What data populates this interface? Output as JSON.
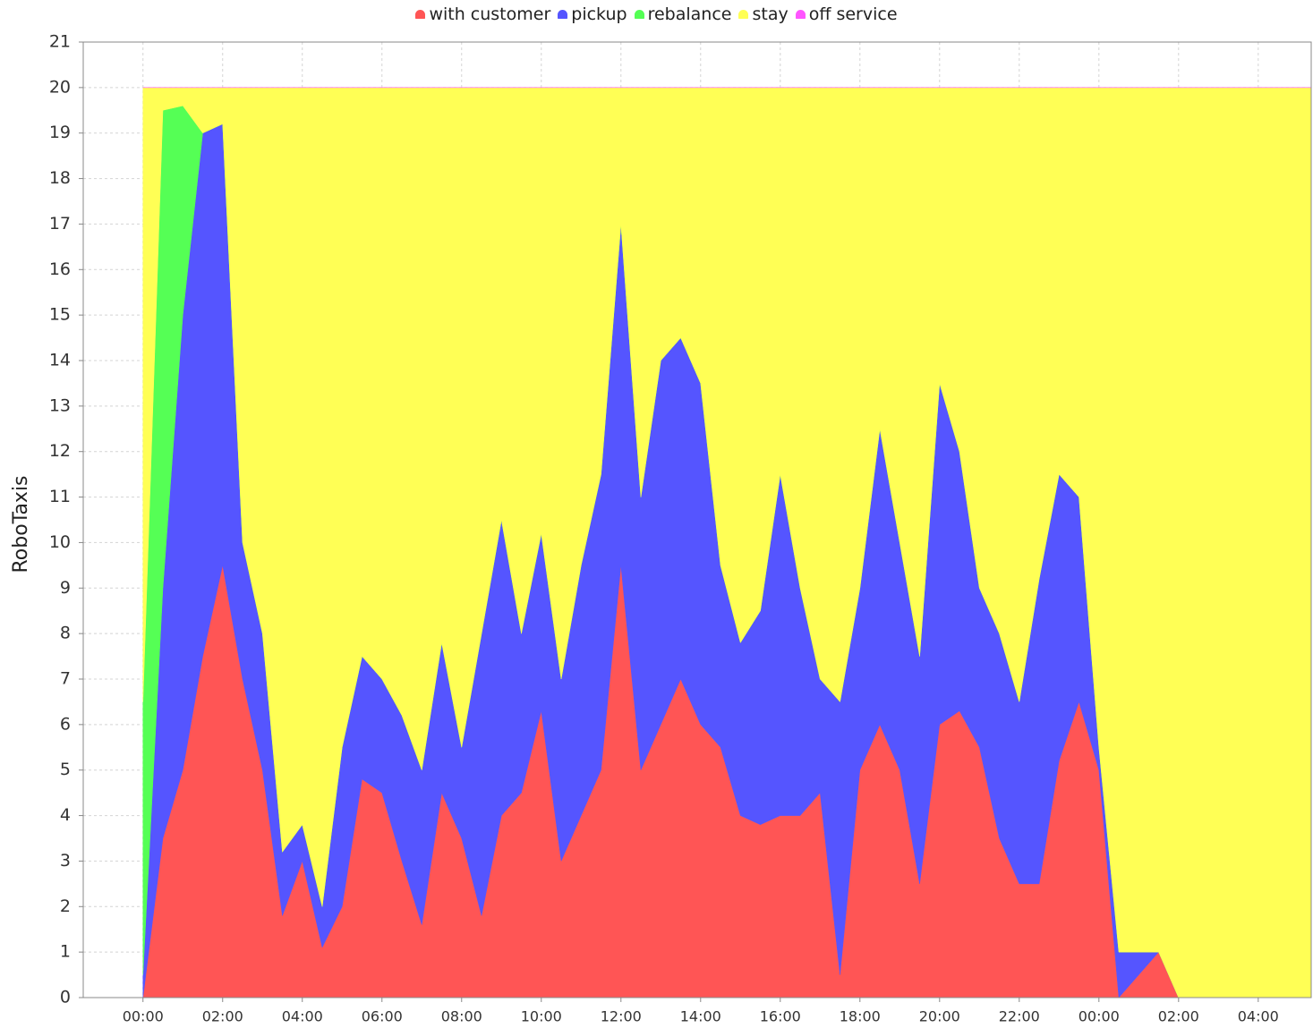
{
  "chart_data": {
    "type": "stacked-area",
    "y_label": "RoboTaxis",
    "x": [
      0,
      0.5,
      1,
      1.5,
      2,
      2.5,
      3,
      3.5,
      4,
      4.5,
      5,
      5.5,
      6,
      6.5,
      7,
      7.5,
      8,
      8.5,
      9,
      9.5,
      10,
      10.5,
      11,
      11.5,
      12,
      12.5,
      13,
      13.5,
      14,
      14.5,
      15,
      15.5,
      16,
      16.5,
      17,
      17.5,
      18,
      18.5,
      19,
      19.5,
      20,
      20.5,
      21,
      21.5,
      22,
      22.5,
      23,
      23.5,
      24,
      24.5,
      25,
      25.5,
      26,
      29.33
    ],
    "series": [
      {
        "name": "with customer",
        "color": "#ff5555",
        "values": [
          0,
          3.5,
          5,
          7.5,
          9.5,
          7,
          5,
          1.8,
          3,
          1.1,
          2,
          4.8,
          4.5,
          3,
          1.6,
          4.5,
          3.5,
          1.8,
          4,
          4.5,
          6.3,
          3,
          4,
          5,
          9.5,
          5,
          6,
          7,
          6,
          5.5,
          4,
          3.8,
          4,
          4,
          4.5,
          0.5,
          5,
          6,
          5,
          2.5,
          6,
          6.3,
          5.5,
          3.5,
          2.5,
          2.5,
          5.2,
          6.5,
          5,
          0,
          0.5,
          1,
          0,
          0
        ]
      },
      {
        "name": "pickup",
        "color": "#5555ff",
        "values": [
          0.5,
          5.5,
          10,
          11.5,
          9.7,
          3,
          3,
          1.4,
          0.8,
          0.9,
          3.5,
          2.7,
          2.5,
          3.2,
          3.4,
          3.3,
          2,
          6.2,
          6.5,
          3.5,
          3.9,
          4,
          5.5,
          6.5,
          7.5,
          6,
          8,
          7.5,
          7.5,
          4,
          3.8,
          4.7,
          7.5,
          5,
          2.5,
          6,
          4,
          6.5,
          5,
          5,
          7.5,
          5.7,
          3.5,
          4.5,
          4,
          6.7,
          6.3,
          4.5,
          0.5,
          1,
          0.5,
          0,
          0,
          0
        ]
      },
      {
        "name": "rebalance",
        "color": "#55ff55",
        "values": [
          6,
          10.5,
          4.6,
          0,
          0,
          0,
          0,
          0,
          0,
          0,
          0,
          0,
          0,
          0,
          0,
          0,
          0,
          0,
          0,
          0,
          0,
          0,
          0,
          0,
          0,
          0,
          0,
          0,
          0,
          0,
          0,
          0,
          0,
          0,
          0,
          0,
          0,
          0,
          0,
          0,
          0,
          0,
          0,
          0,
          0,
          0,
          0,
          0,
          0,
          0,
          0,
          0,
          0,
          0
        ]
      },
      {
        "name": "stay",
        "color": "#ffff55",
        "values": [
          13.5,
          0.5,
          0.4,
          1,
          0.8,
          10,
          12,
          16.8,
          16.2,
          18,
          14.5,
          12.5,
          13,
          13.8,
          15,
          12.2,
          14.5,
          12,
          9.5,
          12,
          9.8,
          13,
          10.5,
          8.5,
          3,
          9,
          6,
          5.5,
          6.5,
          10.5,
          12.2,
          11.5,
          8.5,
          11,
          13,
          13.5,
          11,
          7.5,
          10,
          12.5,
          6.5,
          8,
          11,
          12,
          13.5,
          10.8,
          8.5,
          9,
          14.5,
          19,
          19,
          19,
          20,
          20
        ]
      },
      {
        "name": "off service",
        "color": "#ff55ff",
        "values": [
          0,
          0,
          0,
          0,
          0,
          0,
          0,
          0,
          0,
          0,
          0,
          0,
          0,
          0,
          0,
          0,
          0,
          0,
          0,
          0,
          0,
          0,
          0,
          0,
          0,
          0,
          0,
          0,
          0,
          0,
          0,
          0,
          0,
          0,
          0,
          0,
          0,
          0,
          0,
          0,
          0,
          0,
          0,
          0,
          0,
          0,
          0,
          0,
          0,
          0,
          0,
          0,
          0,
          0
        ]
      }
    ],
    "xlim": [
      -1.5,
      29.33
    ],
    "xticks": [
      {
        "value": 0,
        "label": "00:00"
      },
      {
        "value": 2,
        "label": "02:00"
      },
      {
        "value": 4,
        "label": "04:00"
      },
      {
        "value": 6,
        "label": "06:00"
      },
      {
        "value": 8,
        "label": "08:00"
      },
      {
        "value": 10,
        "label": "10:00"
      },
      {
        "value": 12,
        "label": "12:00"
      },
      {
        "value": 14,
        "label": "14:00"
      },
      {
        "value": 16,
        "label": "16:00"
      },
      {
        "value": 18,
        "label": "18:00"
      },
      {
        "value": 20,
        "label": "20:00"
      },
      {
        "value": 22,
        "label": "22:00"
      },
      {
        "value": 24,
        "label": "00:00"
      },
      {
        "value": 26,
        "label": "02:00"
      },
      {
        "value": 28,
        "label": "04:00"
      }
    ],
    "ylim": [
      0,
      21
    ],
    "yticks": [
      0,
      1,
      2,
      3,
      4,
      5,
      6,
      7,
      8,
      9,
      10,
      11,
      12,
      13,
      14,
      15,
      16,
      17,
      18,
      19,
      20,
      21
    ],
    "grid": true,
    "legend": "top"
  }
}
